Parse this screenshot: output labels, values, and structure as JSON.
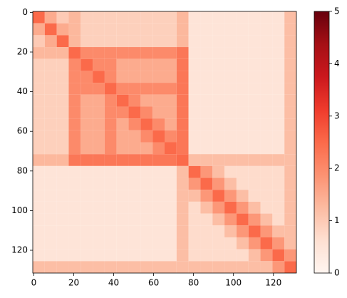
{
  "chart_data": {
    "type": "heatmap",
    "xbins": [
      -0.5,
      5.5,
      11.5,
      17.5,
      23.5,
      29.5,
      35.5,
      41.5,
      47.5,
      53.5,
      59.5,
      65.5,
      71.5,
      77.5,
      83.5,
      89.5,
      95.5,
      101.5,
      107.5,
      113.5,
      119.5,
      125.5,
      131.5
    ],
    "ybins": [
      -0.5,
      5.5,
      11.5,
      17.5,
      23.5,
      29.5,
      35.5,
      41.5,
      47.5,
      53.5,
      59.5,
      65.5,
      71.5,
      77.5,
      83.5,
      89.5,
      95.5,
      101.5,
      107.5,
      113.5,
      119.5,
      125.5,
      131.5
    ],
    "values": [
      [
        2.5,
        1.5,
        1.0,
        1.3,
        0.9,
        0.9,
        0.9,
        0.9,
        0.9,
        0.9,
        0.9,
        0.9,
        1.3,
        0.5,
        0.5,
        0.5,
        0.5,
        0.5,
        0.5,
        0.5,
        0.5,
        1.2
      ],
      [
        1.5,
        2.5,
        1.5,
        1.3,
        0.9,
        0.9,
        0.9,
        0.9,
        0.9,
        0.9,
        0.9,
        0.9,
        1.3,
        0.5,
        0.5,
        0.5,
        0.5,
        0.5,
        0.5,
        0.5,
        0.5,
        1.2
      ],
      [
        1.0,
        1.5,
        2.5,
        1.3,
        0.9,
        0.9,
        0.9,
        0.9,
        0.9,
        0.9,
        0.9,
        0.9,
        1.3,
        0.5,
        0.5,
        0.5,
        0.5,
        0.5,
        0.5,
        0.5,
        0.5,
        1.2
      ],
      [
        1.3,
        1.3,
        1.3,
        2.5,
        2.0,
        2.0,
        2.0,
        2.0,
        2.0,
        2.0,
        2.0,
        2.0,
        2.3,
        0.5,
        0.5,
        0.5,
        0.5,
        0.5,
        0.5,
        0.5,
        0.5,
        1.2
      ],
      [
        0.9,
        0.9,
        0.9,
        2.0,
        2.5,
        2.0,
        2.0,
        1.5,
        1.5,
        1.5,
        1.5,
        1.5,
        2.3,
        0.5,
        0.5,
        0.5,
        0.5,
        0.5,
        0.5,
        0.5,
        0.5,
        1.2
      ],
      [
        0.9,
        0.9,
        0.9,
        2.0,
        2.0,
        2.5,
        2.0,
        1.5,
        1.5,
        1.5,
        1.5,
        1.5,
        2.3,
        0.5,
        0.5,
        0.5,
        0.5,
        0.5,
        0.5,
        0.5,
        0.5,
        1.2
      ],
      [
        0.9,
        0.9,
        0.9,
        2.0,
        2.0,
        2.0,
        2.5,
        2.0,
        2.0,
        2.0,
        2.0,
        2.0,
        2.3,
        0.5,
        0.5,
        0.5,
        0.5,
        0.5,
        0.5,
        0.5,
        0.5,
        1.2
      ],
      [
        0.9,
        0.9,
        0.9,
        2.0,
        1.5,
        1.5,
        2.0,
        2.5,
        2.0,
        1.5,
        1.5,
        1.5,
        2.3,
        0.5,
        0.5,
        0.5,
        0.5,
        0.5,
        0.5,
        0.5,
        0.5,
        1.2
      ],
      [
        0.9,
        0.9,
        0.9,
        2.0,
        1.5,
        1.5,
        2.0,
        2.0,
        2.5,
        2.0,
        1.5,
        1.5,
        2.3,
        0.5,
        0.5,
        0.5,
        0.5,
        0.5,
        0.5,
        0.5,
        0.5,
        1.2
      ],
      [
        0.9,
        0.9,
        0.9,
        2.0,
        1.5,
        1.5,
        2.0,
        1.5,
        2.0,
        2.5,
        2.0,
        1.5,
        2.3,
        0.5,
        0.5,
        0.5,
        0.5,
        0.5,
        0.5,
        0.5,
        0.5,
        1.2
      ],
      [
        0.9,
        0.9,
        0.9,
        2.0,
        1.5,
        1.5,
        2.0,
        1.5,
        1.5,
        2.0,
        2.5,
        2.0,
        2.3,
        0.5,
        0.5,
        0.5,
        0.5,
        0.5,
        0.5,
        0.5,
        0.5,
        1.2
      ],
      [
        0.9,
        0.9,
        0.9,
        2.0,
        1.5,
        1.5,
        2.0,
        1.5,
        1.5,
        1.5,
        2.0,
        2.5,
        2.3,
        0.5,
        0.5,
        0.5,
        0.5,
        0.5,
        0.5,
        0.5,
        0.5,
        1.2
      ],
      [
        1.3,
        1.3,
        1.3,
        2.3,
        2.3,
        2.3,
        2.3,
        2.3,
        2.3,
        2.3,
        2.3,
        2.3,
        2.5,
        1.2,
        1.2,
        1.2,
        1.2,
        1.2,
        1.2,
        1.2,
        1.2,
        1.2
      ],
      [
        0.5,
        0.5,
        0.5,
        0.5,
        0.5,
        0.5,
        0.5,
        0.5,
        0.5,
        0.5,
        0.5,
        0.5,
        1.2,
        2.5,
        1.8,
        1.2,
        0.7,
        0.7,
        0.7,
        0.7,
        0.7,
        1.2
      ],
      [
        0.5,
        0.5,
        0.5,
        0.5,
        0.5,
        0.5,
        0.5,
        0.5,
        0.5,
        0.5,
        0.5,
        0.5,
        1.2,
        1.8,
        2.5,
        1.8,
        1.2,
        0.7,
        0.7,
        0.7,
        0.7,
        1.2
      ],
      [
        0.5,
        0.5,
        0.5,
        0.5,
        0.5,
        0.5,
        0.5,
        0.5,
        0.5,
        0.5,
        0.5,
        0.5,
        1.2,
        1.2,
        1.8,
        2.5,
        1.8,
        1.2,
        0.7,
        0.7,
        0.7,
        1.2
      ],
      [
        0.5,
        0.5,
        0.5,
        0.5,
        0.5,
        0.5,
        0.5,
        0.5,
        0.5,
        0.5,
        0.5,
        0.5,
        1.2,
        0.7,
        1.2,
        1.8,
        2.5,
        1.8,
        1.2,
        0.7,
        0.7,
        1.2
      ],
      [
        0.5,
        0.5,
        0.5,
        0.5,
        0.5,
        0.5,
        0.5,
        0.5,
        0.5,
        0.5,
        0.5,
        0.5,
        1.2,
        0.7,
        0.7,
        1.2,
        1.8,
        2.5,
        1.8,
        1.2,
        0.7,
        1.2
      ],
      [
        0.5,
        0.5,
        0.5,
        0.5,
        0.5,
        0.5,
        0.5,
        0.5,
        0.5,
        0.5,
        0.5,
        0.5,
        1.2,
        0.7,
        0.7,
        0.7,
        1.2,
        1.8,
        2.5,
        1.8,
        1.2,
        1.2
      ],
      [
        0.5,
        0.5,
        0.5,
        0.5,
        0.5,
        0.5,
        0.5,
        0.5,
        0.5,
        0.5,
        0.5,
        0.5,
        1.2,
        0.7,
        0.7,
        0.7,
        0.7,
        1.2,
        1.8,
        2.5,
        1.8,
        1.2
      ],
      [
        0.5,
        0.5,
        0.5,
        0.5,
        0.5,
        0.5,
        0.5,
        0.5,
        0.5,
        0.5,
        0.5,
        0.5,
        1.2,
        0.7,
        0.7,
        0.7,
        0.7,
        0.7,
        1.2,
        1.8,
        2.5,
        1.8
      ],
      [
        1.2,
        1.2,
        1.2,
        1.2,
        1.2,
        1.2,
        1.2,
        1.2,
        1.2,
        1.2,
        1.2,
        1.2,
        1.2,
        1.2,
        1.2,
        1.2,
        1.2,
        1.2,
        1.2,
        1.2,
        1.8,
        2.5
      ]
    ],
    "xlim": [
      -0.5,
      131.5
    ],
    "ylim": [
      131.5,
      -0.5
    ],
    "xticks": [
      0,
      20,
      40,
      60,
      80,
      100,
      120
    ],
    "yticks": [
      0,
      20,
      40,
      60,
      80,
      100,
      120
    ],
    "clim": [
      0,
      5
    ],
    "cticks": [
      0,
      1,
      2,
      3,
      4,
      5
    ],
    "colormap": [
      "#fff5f0",
      "#fee0d2",
      "#fcbba1",
      "#fc9272",
      "#fb6a4a",
      "#ef3b2c",
      "#cb181d",
      "#a50f15",
      "#67000d"
    ]
  }
}
